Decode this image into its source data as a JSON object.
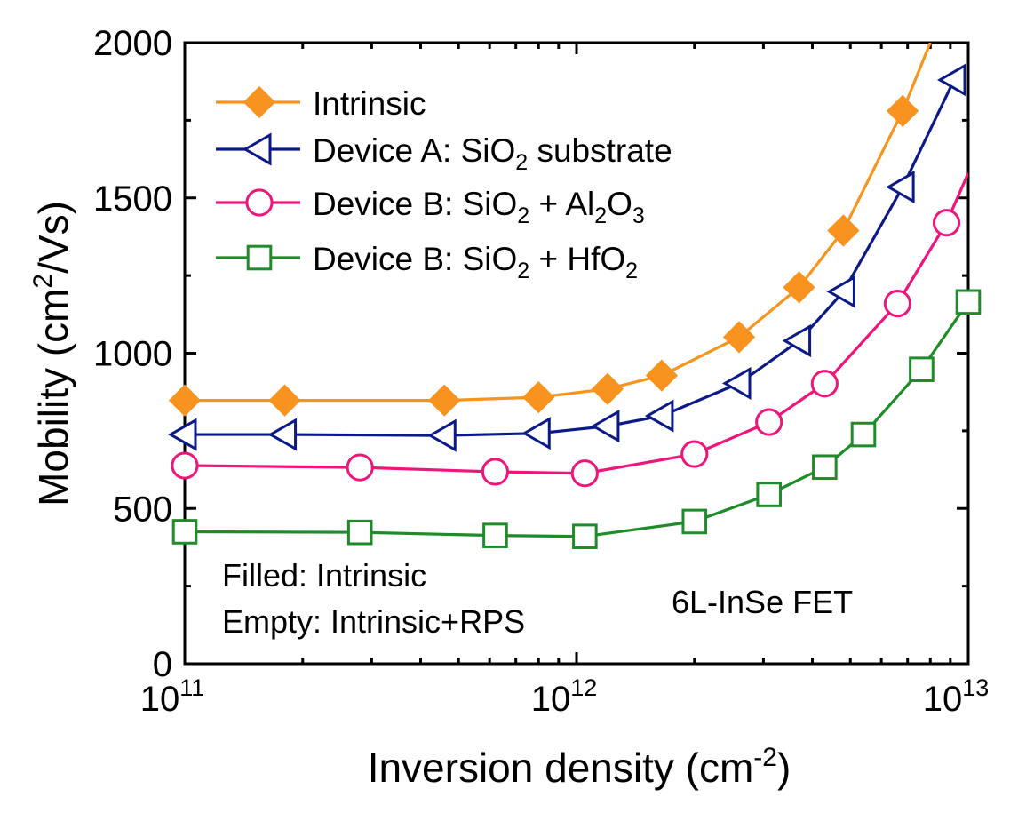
{
  "chart_data": {
    "type": "line",
    "x_scale": "log",
    "xlabel": {
      "main": "Inversion density (cm",
      "sup": "-2",
      "tail": ")"
    },
    "ylabel": {
      "main": "Mobility (cm",
      "sup": "2",
      "tail": "/Vs)"
    },
    "xlim": [
      100000000000.0,
      10000000000000.0
    ],
    "ylim": [
      0,
      2000
    ],
    "x_ticks": [
      {
        "value": 100000000000.0,
        "base": "10",
        "exp": "11"
      },
      {
        "value": 1000000000000.0,
        "base": "10",
        "exp": "12"
      },
      {
        "value": 10000000000000.0,
        "base": "10",
        "exp": "13"
      }
    ],
    "y_ticks": [
      0,
      500,
      1000,
      1500,
      2000
    ],
    "y_tick_labels": [
      "0",
      "500",
      "1000",
      "1500",
      "2000"
    ],
    "series": [
      {
        "name": "Intrinsic",
        "legend_parts": [
          [
            "Intrinsic",
            ""
          ]
        ],
        "color": "#F7941D",
        "marker_color": "#F7931E",
        "marker": "diamond",
        "filled": true,
        "x": [
          100000000000.0,
          180000000000.0,
          460000000000.0,
          800000000000.0,
          1200000000000.0,
          1650000000000.0,
          2600000000000.0,
          3700000000000.0,
          4800000000000.0,
          6800000000000.0,
          8000000000000.0
        ],
        "y": [
          848,
          848,
          848,
          858,
          885,
          928,
          1052,
          1212,
          1395,
          1780,
          2000
        ],
        "marker_flags": [
          1,
          1,
          1,
          1,
          1,
          1,
          1,
          1,
          1,
          1,
          0
        ]
      },
      {
        "name": "Device A: SiO2 substrate",
        "legend_parts": [
          [
            "Device A: SiO",
            ""
          ],
          [
            "2",
            "sub"
          ],
          [
            " substrate",
            ""
          ]
        ],
        "color": "#0B1A87",
        "marker": "triangle-left",
        "filled": false,
        "x": [
          100000000000.0,
          180000000000.0,
          460000000000.0,
          800000000000.0,
          1200000000000.0,
          1650000000000.0,
          2600000000000.0,
          3700000000000.0,
          4800000000000.0,
          6800000000000.0,
          9200000000000.0
        ],
        "y": [
          738,
          738,
          735,
          742,
          765,
          798,
          903,
          1040,
          1198,
          1535,
          1880
        ]
      },
      {
        "name": "Device B: SiO2 + Al2O3",
        "legend_parts": [
          [
            "Device B: SiO",
            ""
          ],
          [
            "2",
            "sub"
          ],
          [
            " + Al",
            ""
          ],
          [
            "2",
            "sub"
          ],
          [
            "O",
            ""
          ],
          [
            "3",
            "sub"
          ]
        ],
        "color": "#F0157A",
        "marker": "circle",
        "filled": false,
        "x": [
          100000000000.0,
          280000000000.0,
          620000000000.0,
          1050000000000.0,
          2000000000000.0,
          3100000000000.0,
          4300000000000.0,
          6600000000000.0,
          8800000000000.0,
          10000000000000.0
        ],
        "y": [
          638,
          632,
          618,
          613,
          675,
          778,
          902,
          1160,
          1420,
          1580
        ],
        "marker_flags": [
          1,
          1,
          1,
          1,
          1,
          1,
          1,
          1,
          1,
          0
        ]
      },
      {
        "name": "Device B: SiO2 + HfO2",
        "legend_parts": [
          [
            "Device B: SiO",
            ""
          ],
          [
            "2",
            "sub"
          ],
          [
            " + HfO",
            ""
          ],
          [
            "2",
            "sub"
          ]
        ],
        "color": "#1E8C28",
        "marker": "square",
        "filled": false,
        "x": [
          100000000000.0,
          280000000000.0,
          620000000000.0,
          1050000000000.0,
          2000000000000.0,
          3100000000000.0,
          4300000000000.0,
          5400000000000.0,
          7600000000000.0,
          10000000000000.0
        ],
        "y": [
          425,
          423,
          413,
          410,
          458,
          545,
          633,
          738,
          948,
          1165
        ]
      }
    ],
    "annotations": [
      "Filled: Intrinsic",
      "Empty: Intrinsic+RPS",
      "6L-InSe FET"
    ],
    "legend_position": "top-left"
  }
}
